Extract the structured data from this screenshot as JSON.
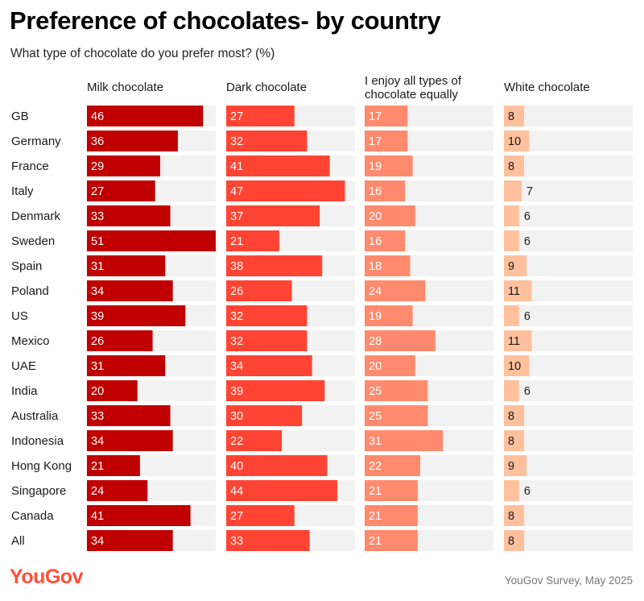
{
  "title": "Preference of chocolates- by country",
  "subtitle": "What type of chocolate do you prefer most? (%)",
  "logo_text": "YouGov",
  "source": "YouGov Survey, May 2025",
  "colors": {
    "milk": "#c00000",
    "dark": "#ff4433",
    "equal": "#ff8a6e",
    "white": "#ffc09d",
    "track": "#f2f2f2",
    "logo": "#ff4f3a"
  },
  "chart_data": {
    "type": "bar",
    "orientation": "horizontal",
    "layout": "small-multiples",
    "categories": [
      "GB",
      "Germany",
      "France",
      "Italy",
      "Denmark",
      "Sweden",
      "Spain",
      "Poland",
      "US",
      "Mexico",
      "UAE",
      "India",
      "Australia",
      "Indonesia",
      "Hong Kong",
      "Singapore",
      "Canada",
      "All"
    ],
    "xlim": [
      0,
      51
    ],
    "series": [
      {
        "name": "Milk chocolate",
        "values": [
          46,
          36,
          29,
          27,
          33,
          51,
          31,
          34,
          39,
          26,
          31,
          20,
          33,
          34,
          21,
          24,
          41,
          34
        ]
      },
      {
        "name": "Dark chocolate",
        "values": [
          27,
          32,
          41,
          47,
          37,
          21,
          38,
          26,
          32,
          32,
          34,
          39,
          30,
          22,
          40,
          44,
          27,
          33
        ]
      },
      {
        "name": "I enjoy all types of chocolate equally",
        "values": [
          17,
          17,
          19,
          16,
          20,
          16,
          18,
          24,
          19,
          28,
          20,
          25,
          25,
          31,
          22,
          21,
          21,
          21
        ]
      },
      {
        "name": "White chocolate",
        "values": [
          8,
          10,
          8,
          7,
          6,
          6,
          9,
          11,
          6,
          11,
          10,
          6,
          8,
          8,
          9,
          6,
          8,
          8
        ]
      }
    ],
    "header_lines": [
      [
        "Milk chocolate"
      ],
      [
        "Dark chocolate"
      ],
      [
        "I enjoy all types of",
        "chocolate equally"
      ],
      [
        "White chocolate"
      ]
    ],
    "data_labels": true,
    "grid": false,
    "legend": "none"
  }
}
